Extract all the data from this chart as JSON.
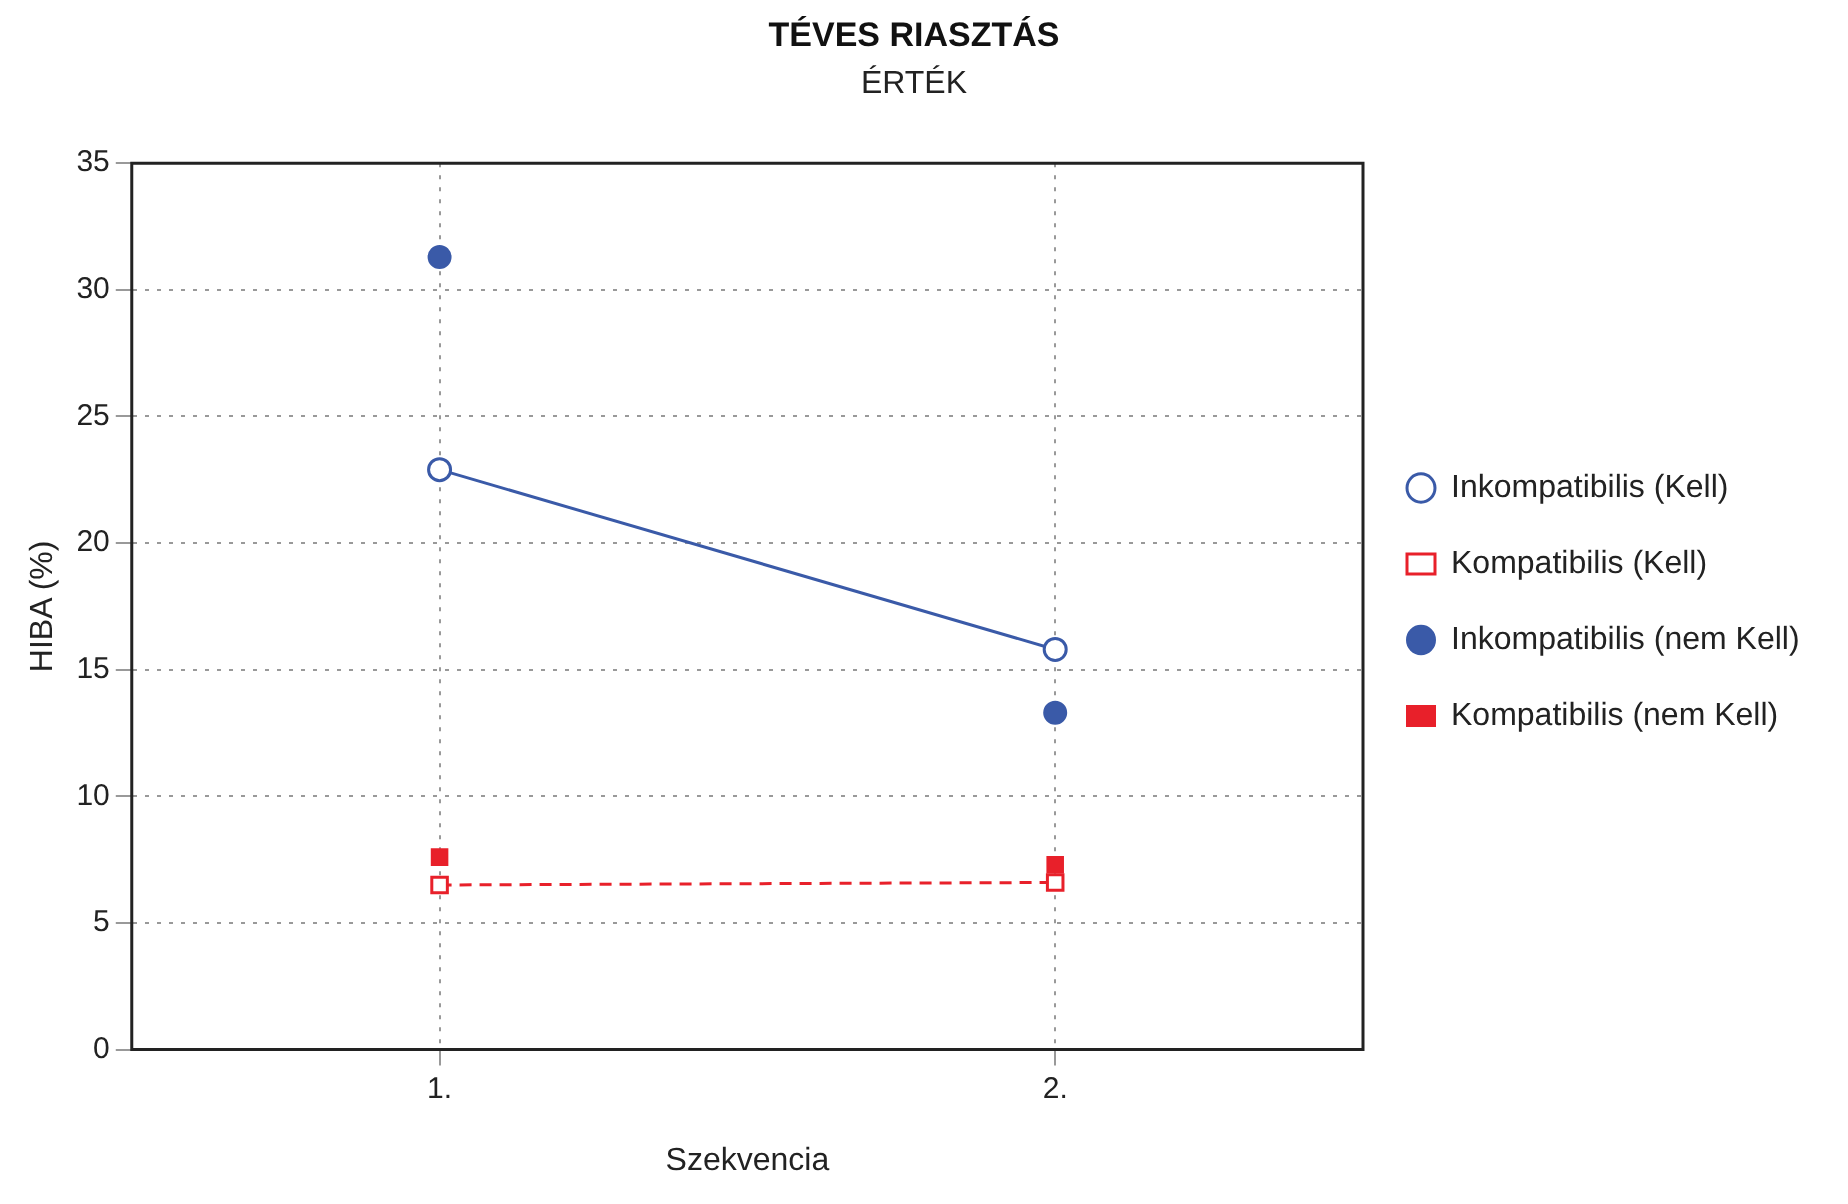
{
  "chart_data": {
    "type": "line",
    "title": "TÉVES RIASZTÁS",
    "subtitle": "ÉRTÉK",
    "xlabel": "Szekvencia",
    "ylabel": "HIBA (%)",
    "categories": [
      "1.",
      "2."
    ],
    "series": [
      {
        "name": "Inkompatibilis (Kell)",
        "type": "line",
        "color": "#3a5aa8",
        "values": [
          22.9,
          15.8
        ],
        "marker": "circle",
        "line_style": "solid"
      },
      {
        "name": "Kompatibilis (Kell)",
        "type": "line",
        "color": "#e8202a",
        "values": [
          6.5,
          6.6
        ],
        "marker": "square",
        "line_style": "dashed"
      },
      {
        "name": "Inkompatibilis (nem Kell)",
        "type": "scatter",
        "color": "#3a5aa8",
        "values": [
          31.3,
          13.3
        ],
        "marker": "circle"
      },
      {
        "name": "Kompatibilis (nem Kell)",
        "type": "scatter",
        "color": "#e8202a",
        "values": [
          7.6,
          7.3
        ],
        "marker": "square"
      }
    ],
    "ylim": [
      0,
      35
    ],
    "yticks": [
      0,
      5,
      10,
      15,
      20,
      25,
      30,
      35
    ],
    "grid": true,
    "legend": "right"
  }
}
